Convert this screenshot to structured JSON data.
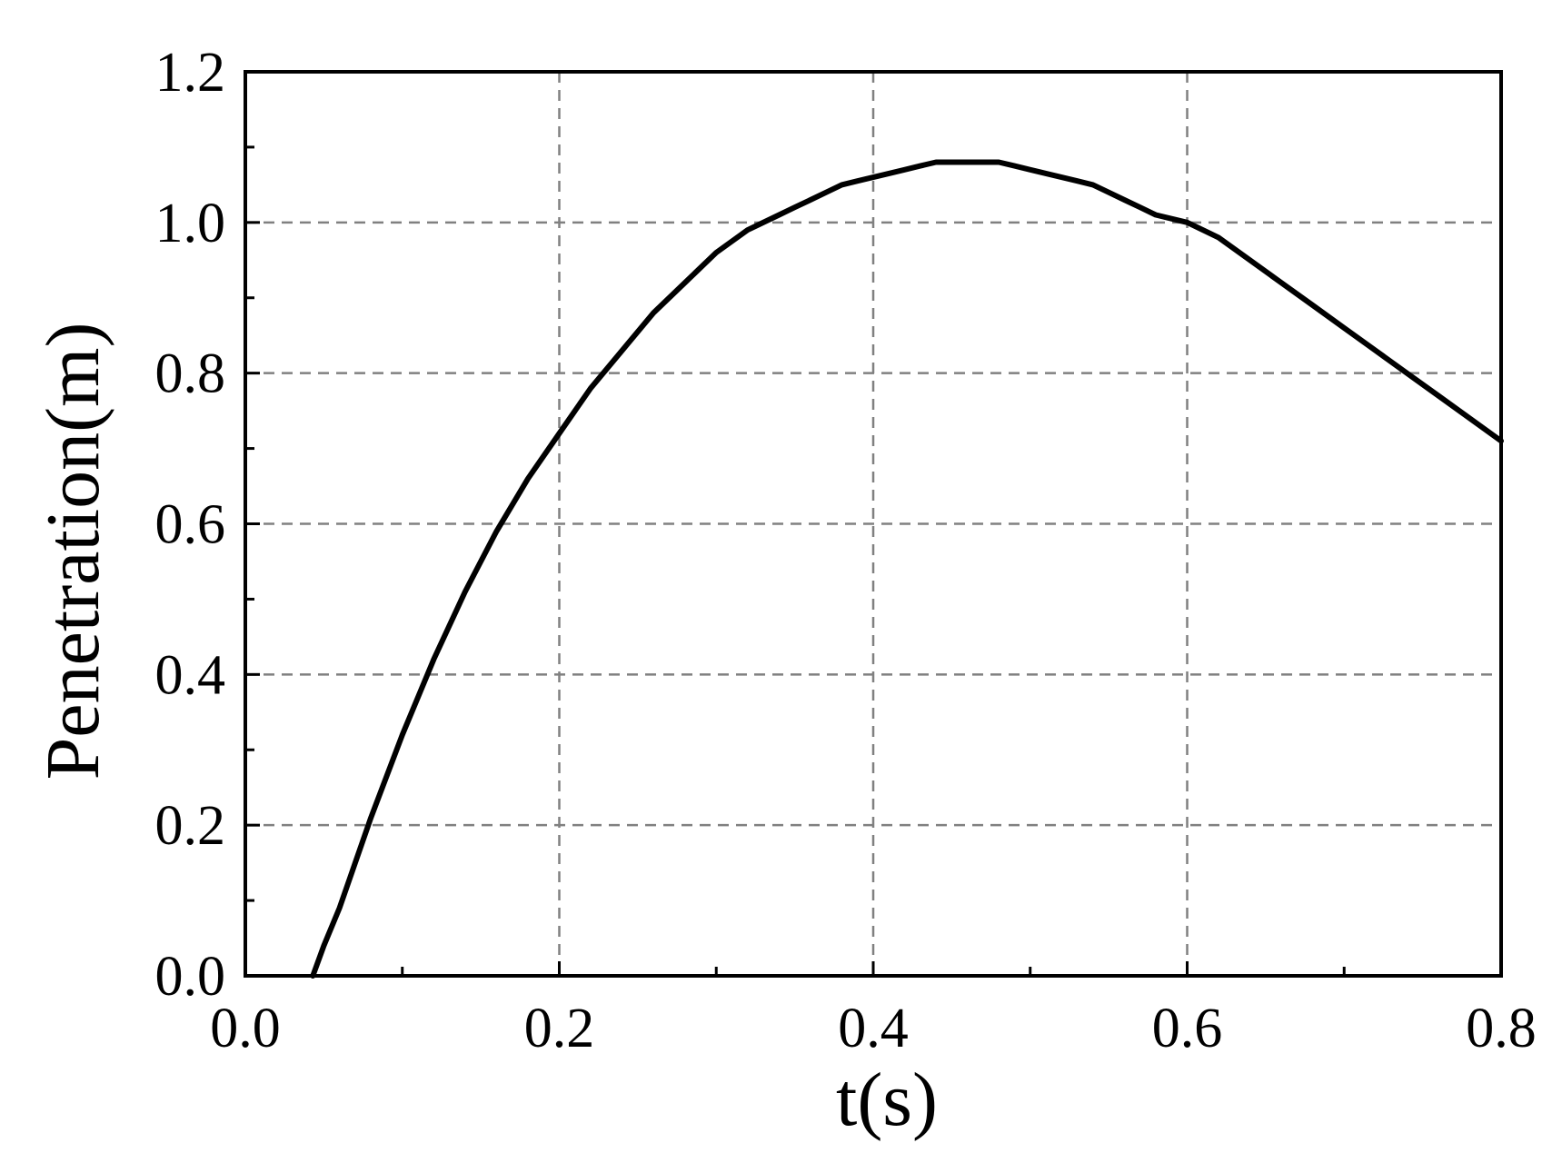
{
  "chart_data": {
    "type": "line",
    "xlabel": "t(s)",
    "ylabel": "Penetration(m)",
    "xlim": [
      0.0,
      0.8
    ],
    "ylim": [
      0.0,
      1.2
    ],
    "xticks": [
      0.0,
      0.2,
      0.4,
      0.6,
      0.8
    ],
    "yticks": [
      0.0,
      0.2,
      0.4,
      0.6,
      0.8,
      1.0,
      1.2
    ],
    "xtick_labels": [
      "0.0",
      "0.2",
      "0.4",
      "0.6",
      "0.8"
    ],
    "ytick_labels": [
      "0.0",
      "0.2",
      "0.4",
      "0.6",
      "0.8",
      "1.0",
      "1.2"
    ],
    "grid": true,
    "line_color": "#000000",
    "grid_color": "#808080",
    "series": [
      {
        "x": [
          0.043,
          0.05,
          0.06,
          0.07,
          0.08,
          0.1,
          0.12,
          0.14,
          0.16,
          0.18,
          0.2,
          0.22,
          0.24,
          0.26,
          0.28,
          0.3,
          0.32,
          0.34,
          0.35,
          0.36,
          0.37,
          0.38,
          0.39,
          0.4,
          0.41,
          0.42,
          0.43,
          0.44,
          0.45,
          0.46,
          0.47,
          0.48,
          0.49,
          0.5,
          0.51,
          0.52,
          0.53,
          0.54,
          0.55,
          0.56,
          0.57,
          0.58,
          0.59,
          0.6,
          0.62,
          0.64,
          0.66,
          0.68,
          0.7,
          0.72,
          0.74,
          0.76,
          0.78,
          0.8
        ],
        "y": [
          0.0,
          0.04,
          0.09,
          0.15,
          0.21,
          0.32,
          0.42,
          0.51,
          0.59,
          0.66,
          0.72,
          0.78,
          0.83,
          0.88,
          0.92,
          0.96,
          0.99,
          1.01,
          1.02,
          1.03,
          1.04,
          1.05,
          1.055,
          1.06,
          1.065,
          1.07,
          1.075,
          1.08,
          1.08,
          1.08,
          1.08,
          1.08,
          1.075,
          1.07,
          1.065,
          1.06,
          1.055,
          1.05,
          1.04,
          1.03,
          1.02,
          1.01,
          1.005,
          1.0,
          0.98,
          0.95,
          0.92,
          0.89,
          0.86,
          0.83,
          0.8,
          0.77,
          0.74,
          0.71
        ]
      }
    ]
  }
}
